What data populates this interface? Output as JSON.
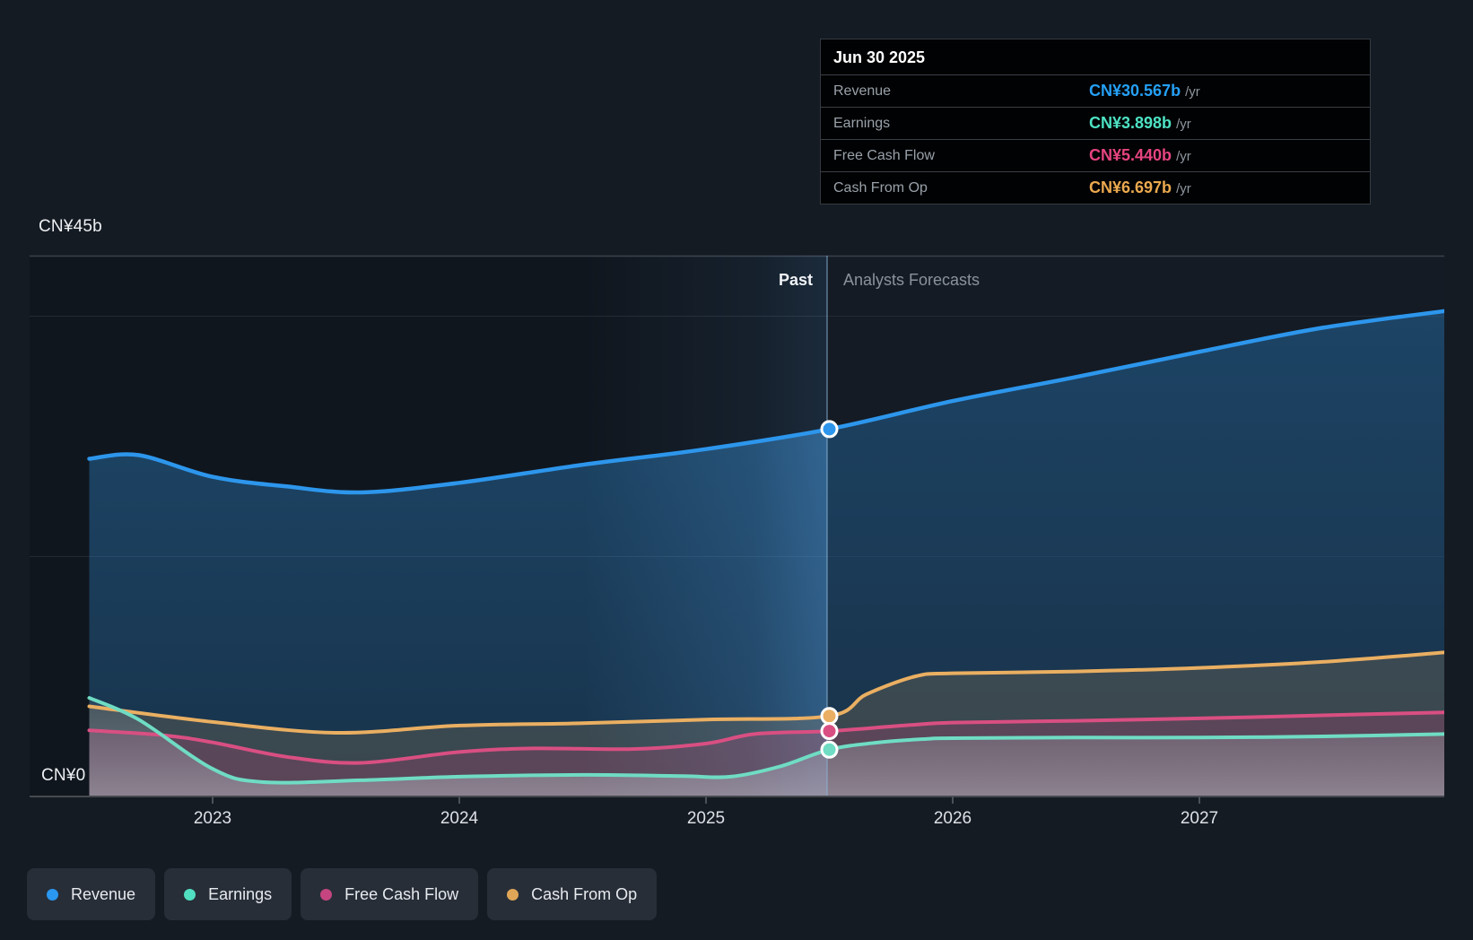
{
  "tooltip": {
    "title": "Jun 30 2025",
    "rows": [
      {
        "label": "Revenue",
        "value": "CN¥30.567b",
        "suffix": "/yr",
        "color": "#25a0f5"
      },
      {
        "label": "Earnings",
        "value": "CN¥3.898b",
        "suffix": "/yr",
        "color": "#4de2c3"
      },
      {
        "label": "Free Cash Flow",
        "value": "CN¥5.440b",
        "suffix": "/yr",
        "color": "#e5447f"
      },
      {
        "label": "Cash From Op",
        "value": "CN¥6.697b",
        "suffix": "/yr",
        "color": "#eba94f"
      }
    ]
  },
  "annotations": {
    "past": "Past",
    "forecast": "Analysts Forecasts"
  },
  "axis": {
    "y_top_label": "CN¥45b",
    "y_zero_label": "CN¥0"
  },
  "legend": [
    {
      "label": "Revenue",
      "color": "#2a97f0"
    },
    {
      "label": "Earnings",
      "color": "#50dfc0"
    },
    {
      "label": "Free Cash Flow",
      "color": "#c54580"
    },
    {
      "label": "Cash From Op",
      "color": "#dfa658"
    }
  ],
  "chart_data": {
    "type": "area",
    "title": "Past and forecast Revenue, Earnings, Free Cash Flow and Cash From Op",
    "unit": "CN¥ billions per year",
    "x_range": [
      2022.5,
      2028.0
    ],
    "x_tick_years": [
      2023,
      2024,
      2025,
      2026,
      2027
    ],
    "x_tick_labels": [
      "2023",
      "2024",
      "2025",
      "2026",
      "2027"
    ],
    "y_axis": {
      "min": 0,
      "max": 45,
      "top_label": "CN¥45b",
      "zero_label": "CN¥0",
      "grid_values": [
        0,
        20,
        40,
        45
      ]
    },
    "divider_year": 2025.5,
    "divider_date": "Jun 30 2025",
    "legend_position": "bottom-left",
    "series": [
      {
        "name": "Revenue",
        "color": "#2d96ec",
        "points": [
          [
            2022.5,
            28.1
          ],
          [
            2022.7,
            28.4
          ],
          [
            2023.0,
            26.6
          ],
          [
            2023.3,
            25.8
          ],
          [
            2023.6,
            25.3
          ],
          [
            2024.0,
            26.1
          ],
          [
            2024.5,
            27.6
          ],
          [
            2025.0,
            28.9
          ],
          [
            2025.5,
            30.567
          ],
          [
            2026.0,
            32.9
          ],
          [
            2026.5,
            34.9
          ],
          [
            2027.0,
            37.0
          ],
          [
            2027.5,
            39.0
          ],
          [
            2028.0,
            40.4
          ]
        ]
      },
      {
        "name": "Cash From Op",
        "color": "#eaaf62",
        "points": [
          [
            2022.5,
            7.5
          ],
          [
            2023.0,
            6.2
          ],
          [
            2023.5,
            5.3
          ],
          [
            2024.0,
            5.9
          ],
          [
            2024.5,
            6.1
          ],
          [
            2025.0,
            6.4
          ],
          [
            2025.5,
            6.697
          ],
          [
            2025.65,
            8.5
          ],
          [
            2025.85,
            10.0
          ],
          [
            2026.0,
            10.25
          ],
          [
            2026.5,
            10.4
          ],
          [
            2027.0,
            10.7
          ],
          [
            2027.5,
            11.2
          ],
          [
            2028.0,
            12.0
          ]
        ]
      },
      {
        "name": "Free Cash Flow",
        "color": "#d94f82",
        "points": [
          [
            2022.5,
            5.5
          ],
          [
            2022.8,
            5.1
          ],
          [
            2023.0,
            4.5
          ],
          [
            2023.3,
            3.3
          ],
          [
            2023.6,
            2.8
          ],
          [
            2024.0,
            3.7
          ],
          [
            2024.3,
            4.0
          ],
          [
            2024.7,
            3.95
          ],
          [
            2025.0,
            4.4
          ],
          [
            2025.2,
            5.2
          ],
          [
            2025.5,
            5.44
          ],
          [
            2025.8,
            5.9
          ],
          [
            2026.0,
            6.15
          ],
          [
            2026.5,
            6.3
          ],
          [
            2027.0,
            6.5
          ],
          [
            2027.5,
            6.75
          ],
          [
            2028.0,
            7.0
          ]
        ]
      },
      {
        "name": "Earnings",
        "color": "#6fdcc3",
        "points": [
          [
            2022.5,
            8.2
          ],
          [
            2022.7,
            6.4
          ],
          [
            2023.0,
            2.3
          ],
          [
            2023.2,
            1.2
          ],
          [
            2023.6,
            1.35
          ],
          [
            2024.0,
            1.65
          ],
          [
            2024.5,
            1.8
          ],
          [
            2024.9,
            1.7
          ],
          [
            2025.1,
            1.65
          ],
          [
            2025.3,
            2.5
          ],
          [
            2025.5,
            3.898
          ],
          [
            2025.7,
            4.5
          ],
          [
            2025.9,
            4.8
          ],
          [
            2026.0,
            4.85
          ],
          [
            2026.5,
            4.9
          ],
          [
            2027.0,
            4.9
          ],
          [
            2027.5,
            5.0
          ],
          [
            2028.0,
            5.2
          ]
        ]
      }
    ],
    "markers_at_divider": {
      "Revenue": 30.567,
      "Earnings": 3.898,
      "Free Cash Flow": 5.44,
      "Cash From Op": 6.697
    }
  }
}
